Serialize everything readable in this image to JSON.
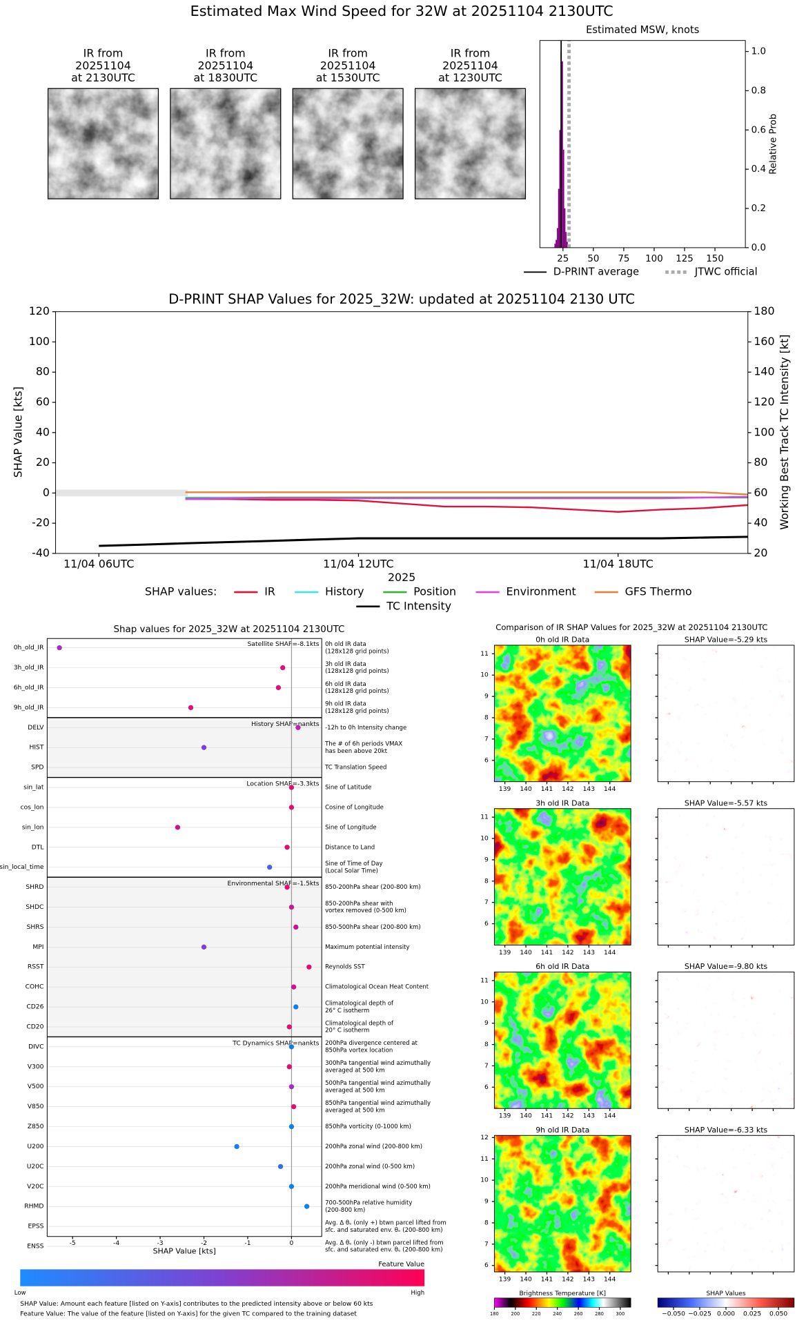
{
  "title": "Estimated Max Wind Speed for 32W at 20251104 2130UTC",
  "ir_panels": [
    {
      "lines": [
        "IR from",
        "20251104",
        "at 2130UTC"
      ]
    },
    {
      "lines": [
        "IR from",
        "20251104",
        "at 1830UTC"
      ]
    },
    {
      "lines": [
        "IR from",
        "20251104",
        "at 1530UTC"
      ]
    },
    {
      "lines": [
        "IR from",
        "20251104",
        "at 1230UTC"
      ]
    }
  ],
  "chart_data": [
    {
      "type": "histogram",
      "title": "Estimated MSW, knots",
      "y_label": "Relative Prob",
      "bins": [
        18,
        19,
        20,
        21,
        22,
        23,
        24,
        25,
        26,
        27,
        28,
        29
      ],
      "counts": [
        0.02,
        0.04,
        0.1,
        0.3,
        0.6,
        1,
        0.95,
        0.5,
        0.2,
        0.08,
        0.03
      ],
      "color": "#800080",
      "xlim": [
        6,
        175
      ],
      "ylim": [
        0,
        1.056
      ],
      "xticks": [
        25,
        50,
        75,
        100,
        125,
        150
      ],
      "yticks": [
        {
          "value": 0,
          "label": "0.0"
        },
        0.2,
        0.4,
        0.6,
        0.8,
        {
          "value": 1,
          "label": "1.0"
        }
      ],
      "lines": [
        {
          "name": "D-PRINT average",
          "value": 23.5,
          "color": "#000000"
        },
        {
          "name": "JTWC official",
          "value": 30,
          "color": "#aaaaaa"
        }
      ]
    },
    {
      "type": "line",
      "title": "D-PRINT SHAP Values for 2025_32W: updated at 20251104 2130 UTC",
      "x_label": "2025",
      "y_label": "SHAP Value [kts]",
      "y2_label": "Working Best Track TC Intensity [kt]",
      "legend_title": "SHAP values:",
      "x": [
        "11/04 06UTC",
        "11/04 07UTC",
        "11/04 08UTC",
        "11/04 09UTC",
        "11/04 10UTC",
        "11/04 11UTC",
        "11/04 12UTC",
        "11/04 13UTC",
        "11/04 14UTC",
        "11/04 15UTC",
        "11/04 16UTC",
        "11/04 17UTC",
        "11/04 18UTC",
        "11/04 19UTC",
        "11/04 20UTC",
        "11/04 21UTC"
      ],
      "xlim": [
        "11/04 05UTC",
        "11/04 21UTC"
      ],
      "xticks": [
        "11/04 06UTC",
        "11/04 12UTC",
        "11/04 18UTC"
      ],
      "ylim": [
        -40,
        120
      ],
      "yticks": [
        -40,
        -20,
        0,
        20,
        40,
        60,
        80,
        100,
        120
      ],
      "y2lim": [
        20,
        180
      ],
      "y2ticks": [
        20,
        40,
        60,
        80,
        100,
        120,
        140,
        160,
        180
      ],
      "series": [
        {
          "name": "IR",
          "color": "#dc143c",
          "values": [
            null,
            null,
            -4,
            -4,
            -4.5,
            -4.5,
            -5,
            -7,
            -9,
            -9,
            -9.5,
            -11,
            -12.5,
            -11,
            -10,
            -8
          ]
        },
        {
          "name": "History",
          "color": "#40e0f0",
          "values": [
            null,
            null,
            -3,
            -3,
            -3,
            -3,
            -3,
            -3,
            -3,
            -3,
            -3,
            -3,
            -3,
            -3,
            -3,
            -3
          ]
        },
        {
          "name": "Position",
          "color": "#32b432",
          "values": [
            null,
            null,
            -3.5,
            -3.5,
            -3,
            -3,
            -3,
            -3,
            -3,
            -3,
            -3,
            -3,
            -3,
            -3,
            -3,
            -3
          ]
        },
        {
          "name": "Environment",
          "color": "#dd44dd",
          "values": [
            null,
            null,
            -4,
            -3.5,
            -3.5,
            -3.5,
            -3.5,
            -3.5,
            -3.5,
            -3.5,
            -3.5,
            -3.5,
            -3.5,
            -3.5,
            -3,
            -2.5
          ]
        },
        {
          "name": "GFS Thermo",
          "color": "#e8803a",
          "values": [
            null,
            null,
            0.5,
            0.5,
            0.5,
            0.5,
            0.5,
            0.5,
            0.5,
            0.5,
            0.5,
            0.5,
            0.5,
            0.5,
            0.5,
            -1
          ]
        },
        {
          "name": "TC Intensity",
          "color": "#000000",
          "axis": "y2",
          "values": [
            25,
            25.8,
            26.7,
            27.5,
            28.3,
            29.2,
            30,
            30,
            30,
            30,
            30,
            30,
            30,
            30,
            30.5,
            31
          ]
        }
      ]
    },
    {
      "type": "dot",
      "title": "Shap values for 2025_32W at 20251104 2130UTC",
      "x_label": "SHAP Value [kts]",
      "xlim": [
        -5.58,
        0.69
      ],
      "xticks": [
        -5,
        -4,
        -3,
        -2,
        -1,
        0
      ],
      "groups": [
        {
          "label": "Satellite SHAP=-8.1kts",
          "features": [
            {
              "name": "0h_old_IR",
              "description": [
                "0h old IR data",
                "(128x128 grid points)"
              ],
              "value": -5.3,
              "color": "#a030c0"
            },
            {
              "name": "3h_old_IR",
              "description": [
                "3h old IR data",
                "(128x128 grid points)"
              ],
              "value": -0.2,
              "color": "#e0107a"
            },
            {
              "name": "6h_old_IR",
              "description": [
                "6h old IR data",
                "(128x128 grid points)"
              ],
              "value": -0.3,
              "color": "#e0107a"
            },
            {
              "name": "9h_old_IR",
              "description": [
                "9h old IR data",
                "(128x128 grid points)"
              ],
              "value": -2.3,
              "color": "#e0107a"
            }
          ]
        },
        {
          "label": "History SHAP=nankts",
          "features": [
            {
              "name": "DELV",
              "description": [
                "-12h to 0h Intensity change"
              ],
              "value": 0.15,
              "color": "#c020b0"
            },
            {
              "name": "HIST",
              "description": [
                "The # of 6h periods VMAX",
                "has been above 20kt"
              ],
              "value": -2,
              "color": "#8040d0"
            },
            {
              "name": "SPD",
              "description": [
                "TC Translation Speed"
              ],
              "value": null
            }
          ]
        },
        {
          "label": "Location SHAP=-3.3kts",
          "features": [
            {
              "name": "sin_lat",
              "description": [
                "Sine of Latitude"
              ],
              "value": 0,
              "color": "#e01070"
            },
            {
              "name": "cos_lon",
              "description": [
                "Cosine of Longitude"
              ],
              "value": 0,
              "color": "#e01070"
            },
            {
              "name": "sin_lon",
              "description": [
                "Sine of Longitude"
              ],
              "value": -2.6,
              "color": "#d01090"
            },
            {
              "name": "DTL",
              "description": [
                "Distance to Land"
              ],
              "value": -0.1,
              "color": "#e01070"
            },
            {
              "name": "sin_local_time",
              "description": [
                "Sine of Time of Day",
                "(Local Solar Time)"
              ],
              "value": -0.5,
              "color": "#5060e0"
            }
          ]
        },
        {
          "label": "Environmental SHAP=-1.5kts",
          "features": [
            {
              "name": "SHRD",
              "description": [
                "850-200hPa shear (200-800 km)"
              ],
              "value": -0.1,
              "color": "#e01070"
            },
            {
              "name": "SHDC",
              "description": [
                "850-200hPa shear with",
                "vortex removed (0-500 km)"
              ],
              "value": 0,
              "color": "#c02090"
            },
            {
              "name": "SHRS",
              "description": [
                "850-500hPa shear (200-800 km)"
              ],
              "value": 0.1,
              "color": "#d01090"
            },
            {
              "name": "MPI",
              "description": [
                "Maximum potential intensity"
              ],
              "value": -2,
              "color": "#8040d0"
            },
            {
              "name": "RSST",
              "description": [
                "Reynolds SST"
              ],
              "value": 0.4,
              "color": "#e01070"
            },
            {
              "name": "COHC",
              "description": [
                "Climatological Ocean Heat Content"
              ],
              "value": 0.05,
              "color": "#d01090"
            },
            {
              "name": "CD26",
              "description": [
                "Climatological depth of",
                "26° C isotherm"
              ],
              "value": 0.1,
              "color": "#1080f0"
            },
            {
              "name": "CD20",
              "description": [
                "Climatological depth of",
                "20° C isotherm"
              ],
              "value": -0.05,
              "color": "#e01070"
            }
          ]
        },
        {
          "label": "TC Dynamics SHAP=nankts",
          "features": [
            {
              "name": "DIVC",
              "description": [
                "200hPa divergence centered at",
                "850hPa vortex location"
              ],
              "value": 0,
              "color": "#1080f0"
            },
            {
              "name": "V300",
              "description": [
                "300hPa tangential wind azimuthally",
                "averaged at 500 km"
              ],
              "value": -0.05,
              "color": "#e01070"
            },
            {
              "name": "V500",
              "description": [
                "500hPa tangential wind azimuthally",
                "averaged at 500 km"
              ],
              "value": 0,
              "color": "#a030c0"
            },
            {
              "name": "V850",
              "description": [
                "850hPa tangential wind azimuthally",
                "averaged at 500 km"
              ],
              "value": 0.05,
              "color": "#e01070"
            },
            {
              "name": "Z850",
              "description": [
                "850hPa vorticity (0-1000 km)"
              ],
              "value": 0,
              "color": "#1080f0"
            },
            {
              "name": "U200",
              "description": [
                "200hPa zonal wind (200-800 km)"
              ],
              "value": -1.25,
              "color": "#1080f0"
            },
            {
              "name": "U20C",
              "description": [
                "200hPa zonal wind (0-500 km)"
              ],
              "value": -0.25,
              "color": "#3070e0"
            },
            {
              "name": "V20C",
              "description": [
                "200hPa meridional wind (0-500 km)"
              ],
              "value": 0,
              "color": "#1080f0"
            },
            {
              "name": "RHMD",
              "description": [
                "700-500hPa relative humidity",
                "(200-800 km)"
              ],
              "value": 0.35,
              "color": "#1080f0"
            },
            {
              "name": "EPSS",
              "description": [
                "Avg. Δ θₑ (only +) btwn parcel lifted from",
                "sfc. and saturated env. θₑ (200-800 km)"
              ],
              "value": null
            },
            {
              "name": "ENSS",
              "description": [
                "Avg. Δ θₑ (only -) btwn parcel lifted from",
                "sfc. and saturated env. θₑ (200-800 km)"
              ],
              "value": null
            }
          ]
        }
      ],
      "colorbar": {
        "title": "Feature Value",
        "low": "Low",
        "high": "High",
        "colors": [
          "#1e8cff",
          "#8040d0",
          "#ff0055"
        ]
      },
      "footnotes": [
        "SHAP Value: Amount each feature [listed on Y-axis] contributes to the predicted intensity above or below 60 kts",
        "Feature Value: The value of the feature [listed on Y-axis] for the given TC compared to the training dataset"
      ]
    }
  ],
  "ir_comparison": {
    "title": "Comparison of IR SHAP Values for 2025_32W at 20251104 2130UTC",
    "xlim": [
      138.5,
      145
    ],
    "lon_ticks": [
      139,
      140,
      141,
      142,
      143,
      144
    ],
    "rows": [
      {
        "ir_title": "0h old IR Data",
        "shap_title": "SHAP Value=-5.29 kts",
        "ylim": [
          5,
          11.4
        ],
        "lat_ticks": [
          6,
          7,
          8,
          9,
          10,
          11
        ]
      },
      {
        "ir_title": "3h old IR Data",
        "shap_title": "SHAP Value=-5.57 kts",
        "ylim": [
          5,
          11.4
        ],
        "lat_ticks": [
          6,
          7,
          8,
          9,
          10,
          11
        ]
      },
      {
        "ir_title": "6h old IR Data",
        "shap_title": "SHAP Value=-9.80 kts",
        "ylim": [
          5,
          11.4
        ],
        "lat_ticks": [
          6,
          7,
          8,
          9,
          10,
          11
        ]
      },
      {
        "ir_title": "9h old IR Data",
        "shap_title": "SHAP Value=-6.33 kts",
        "ylim": [
          5.7,
          12.1
        ],
        "lat_ticks": [
          6,
          7,
          8,
          9,
          10,
          11,
          12
        ]
      }
    ],
    "bt_colorbar": {
      "label": "Brightness Temperature [K]",
      "xlim": [
        180,
        310
      ],
      "ticks": [
        180,
        200,
        220,
        240,
        260,
        280,
        300
      ]
    },
    "shap_colorbar": {
      "label": "SHAP Values",
      "xlim": [
        -0.065,
        0.065
      ],
      "ticks": [
        {
          "value": -0.05,
          "label": "−0.050"
        },
        {
          "value": -0.025,
          "label": "−0.025"
        },
        {
          "value": 0,
          "label": "0.000"
        },
        {
          "value": 0.025,
          "label": "0.025"
        },
        {
          "value": 0.05,
          "label": "0.050"
        }
      ]
    }
  }
}
